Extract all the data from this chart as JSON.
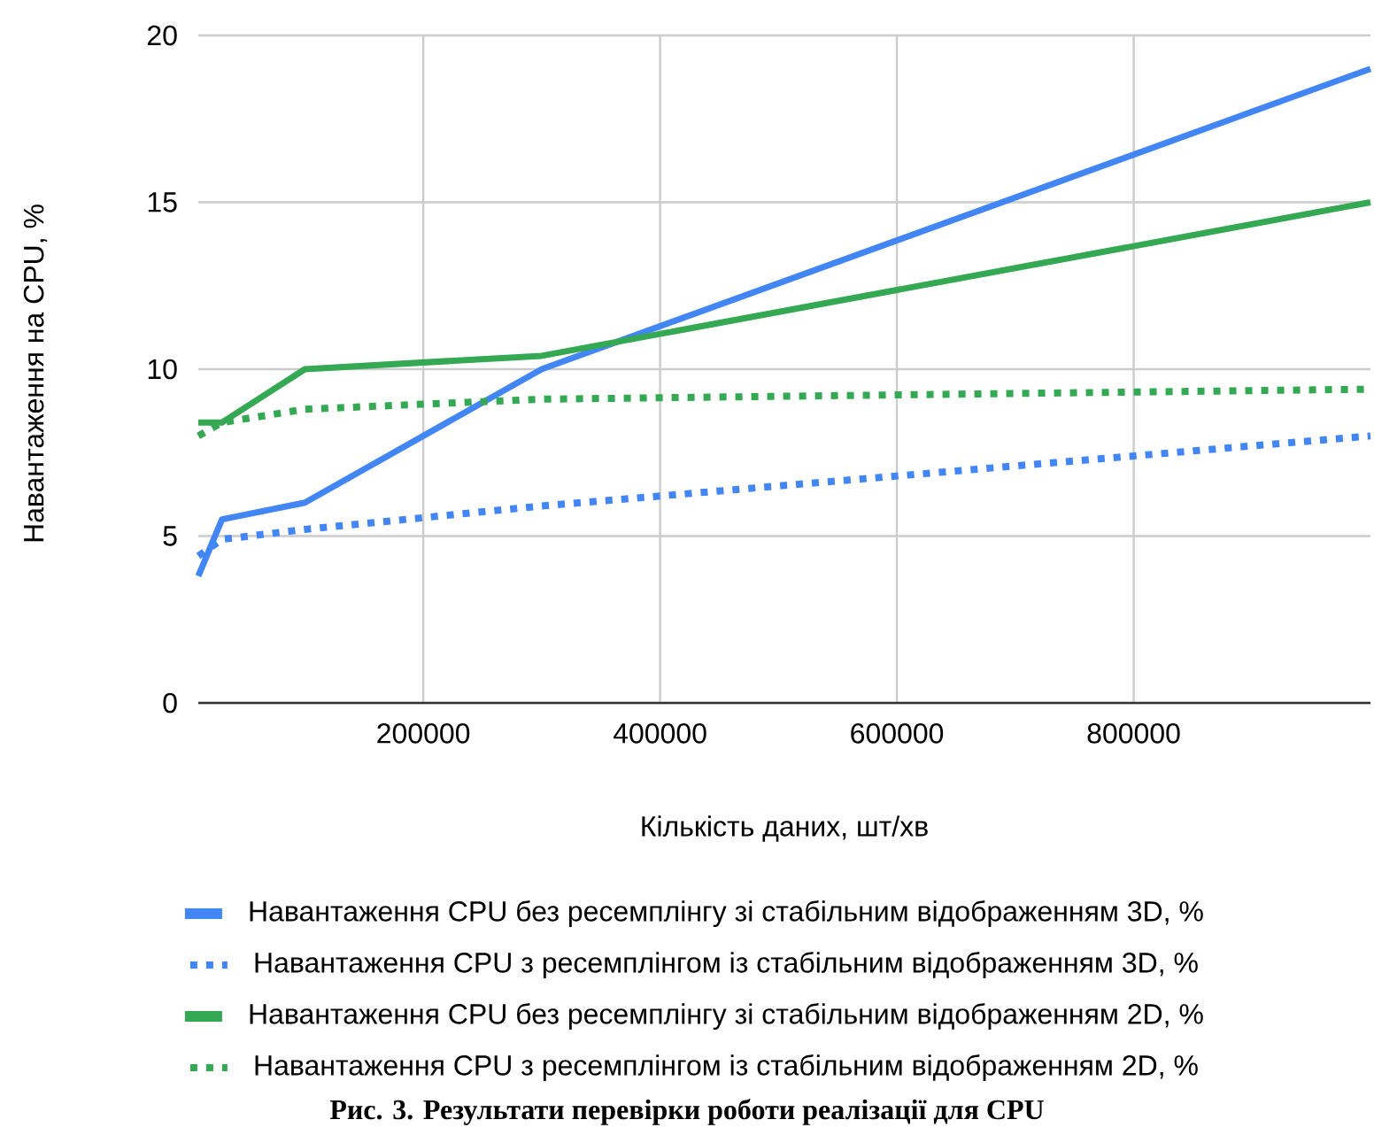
{
  "chart_data": {
    "type": "line",
    "xlabel": "Кількість даних, шт/хв",
    "ylabel": "Навантаження на CPU, %",
    "annotations": [
      "Рис. 3. Результати перевірки роботи реалізації для CPU"
    ],
    "x": [
      10000,
      30000,
      100000,
      300000,
      1000000
    ],
    "series": [
      {
        "name": "Навантаження CPU без ресемплінгу зі стабільним відображенням 3D, %",
        "color": "#4285f4",
        "line_style": "solid",
        "values": [
          3.8,
          5.5,
          6,
          10,
          19
        ]
      },
      {
        "name": "Навантаження CPU з ресемплінгом із стабільним відображенням 3D, %",
        "color": "#4285f4",
        "line_style": "dotted",
        "values": [
          4.4,
          4.9,
          5.2,
          5.9,
          8
        ]
      },
      {
        "name": "Навантаження CPU без ресемплінгу зі стабільним відображенням 2D, %",
        "color": "#34a853",
        "line_style": "solid",
        "values": [
          8.4,
          8.4,
          10,
          10.4,
          15
        ]
      },
      {
        "name": "Навантаження CPU з ресемплінгом із стабільним відображенням 2D, %",
        "color": "#34a853",
        "line_style": "dotted",
        "values": [
          8,
          8.4,
          8.8,
          9.1,
          9.4
        ]
      }
    ],
    "xlim": [
      10000,
      1000000
    ],
    "ylim": [
      0,
      20
    ],
    "xticks": [
      200000,
      400000,
      600000,
      800000
    ],
    "yticks": [
      0,
      5,
      10,
      15,
      20
    ],
    "grid": true,
    "legend": "bottom",
    "marker": "none"
  }
}
